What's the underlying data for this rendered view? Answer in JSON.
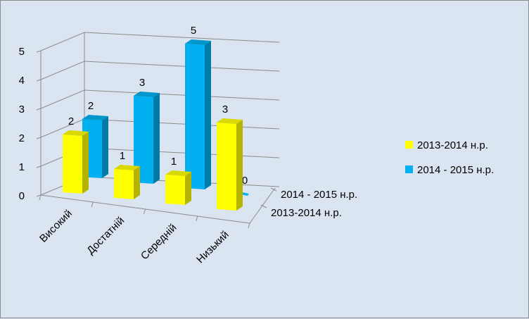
{
  "chart_data": {
    "type": "bar",
    "categories": [
      "Високий",
      "Достатній",
      "Середній",
      "Низький"
    ],
    "series": [
      {
        "name": "2013-2014 н.р.",
        "values": [
          2,
          1,
          1,
          3
        ],
        "color": "#ffff00"
      },
      {
        "name": "2014 - 2015 н.р.",
        "values": [
          2,
          3,
          5,
          0
        ],
        "color": "#00b0f0"
      }
    ],
    "depth_labels": [
      "2014 - 2015 н.р.",
      "2013-2014 н.р."
    ],
    "ylim": [
      0,
      5
    ],
    "yticks": [
      "0",
      "1",
      "2",
      "3",
      "4",
      "5"
    ],
    "grid": true,
    "legend_position": "right",
    "title": "",
    "xlabel": "",
    "ylabel": ""
  }
}
